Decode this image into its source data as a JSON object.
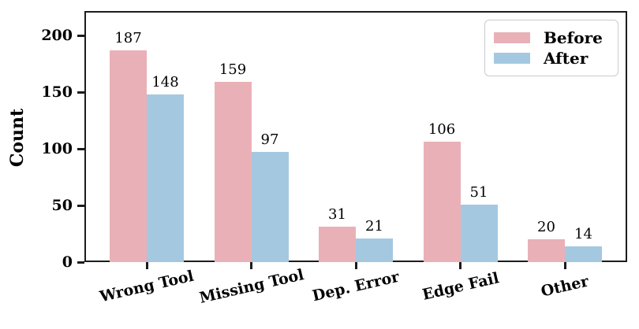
{
  "chart_data": {
    "type": "bar",
    "title": "",
    "xlabel": "",
    "ylabel": "Count",
    "categories": [
      "Wrong Tool",
      "Missing Tool",
      "Dep. Error",
      "Edge Fail",
      "Other"
    ],
    "series": [
      {
        "name": "Before",
        "color": "#e9b1b7",
        "values": [
          187,
          159,
          31,
          106,
          20
        ]
      },
      {
        "name": "After",
        "color": "#a5c8e1",
        "values": [
          148,
          97,
          21,
          51,
          14
        ]
      }
    ],
    "yticks": [
      0,
      50,
      100,
      150,
      200
    ],
    "ylim": [
      0,
      221
    ],
    "grid": false,
    "legend_position": "upper right",
    "bar_value_labels": true
  },
  "colors": {
    "axis": "#1c1c1c",
    "text": "#000000",
    "legend_border": "#cccccc",
    "background": "#ffffff"
  }
}
